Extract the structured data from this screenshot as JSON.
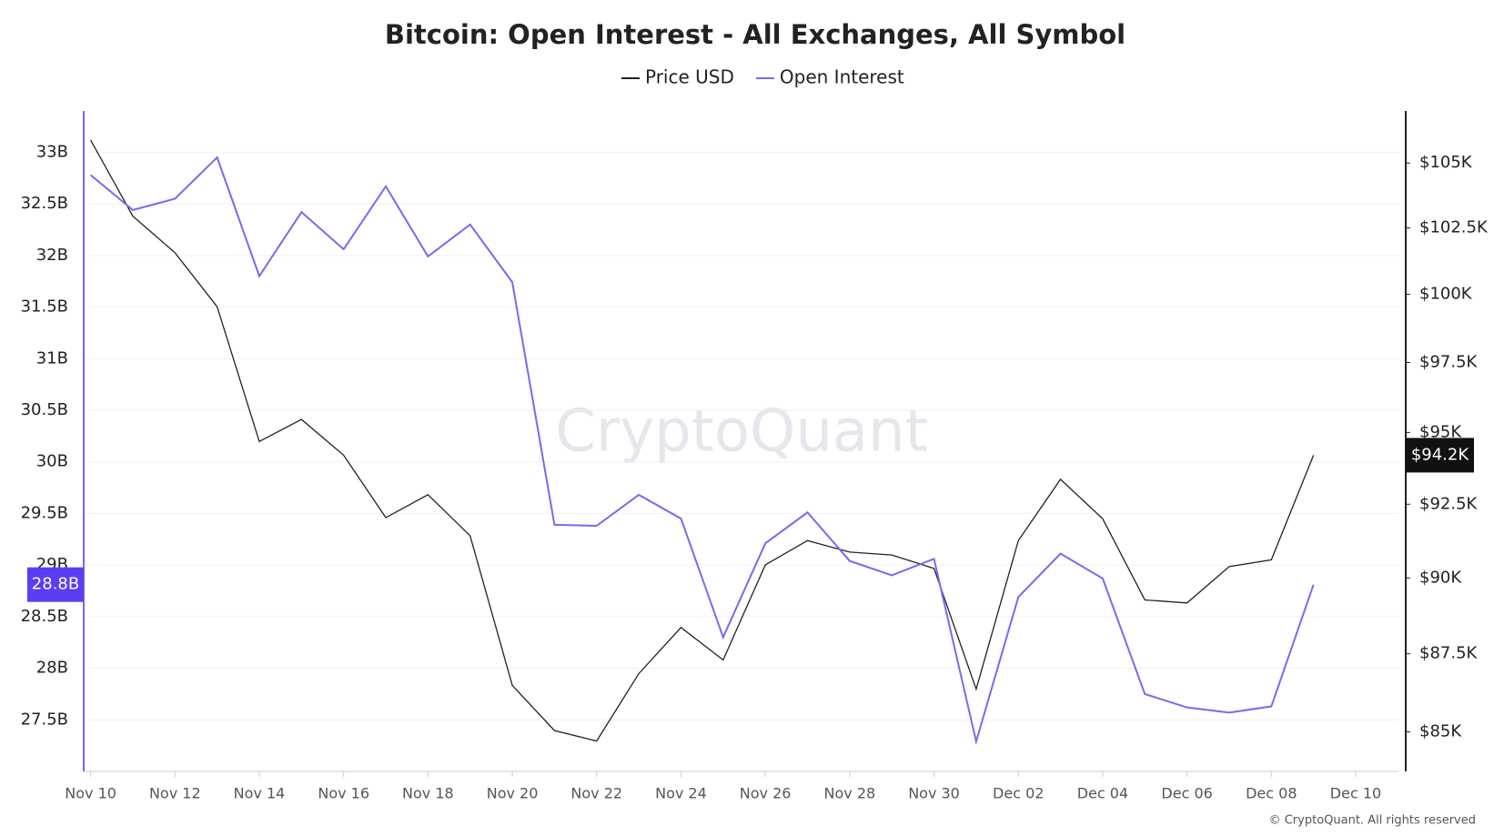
{
  "chart_data": {
    "type": "line",
    "title": "Bitcoin: Open Interest - All Exchanges, All Symbol",
    "categories": [
      "Nov 10",
      null,
      "Nov 12",
      null,
      "Nov 14",
      null,
      "Nov 16",
      null,
      "Nov 18",
      null,
      "Nov 20",
      null,
      "Nov 22",
      null,
      "Nov 24",
      null,
      "Nov 26",
      null,
      "Nov 28",
      null,
      "Nov 30",
      null,
      "Dec 02",
      null,
      "Dec 04",
      null,
      "Dec 06",
      null,
      "Dec 08",
      null,
      "Dec 10"
    ],
    "series": [
      {
        "name": "Price USD",
        "color": "#222222",
        "axis": "y2",
        "values": [
          105900,
          102950,
          101560,
          99540,
          94680,
          95460,
          94200,
          92040,
          92830,
          91420,
          86480,
          85040,
          84710,
          86860,
          88360,
          87300,
          90440,
          91260,
          90870,
          90770,
          90320,
          86360,
          91260,
          93360,
          92000,
          89270,
          89170,
          90380,
          90610,
          94200,
          null
        ],
        "value_labels": [
          null,
          null,
          null,
          null,
          null,
          null,
          null,
          null,
          null,
          null,
          null,
          null,
          null,
          null,
          null,
          null,
          null,
          null,
          null,
          null,
          null,
          null,
          null,
          null,
          null,
          null,
          null,
          null,
          null,
          "$94.2K",
          null
        ]
      },
      {
        "name": "Open Interest",
        "color": "#7b68ee",
        "values": [
          32.78,
          32.44,
          32.55,
          32.95,
          31.8,
          32.42,
          32.06,
          32.67,
          31.99,
          32.3,
          31.74,
          29.39,
          29.38,
          29.68,
          29.45,
          28.3,
          29.21,
          29.51,
          29.04,
          28.9,
          29.06,
          27.29,
          28.69,
          29.11,
          28.87,
          27.75,
          27.62,
          27.57,
          27.63,
          28.81,
          null
        ],
        "value_labels": [
          null,
          null,
          null,
          null,
          null,
          null,
          null,
          null,
          null,
          null,
          null,
          null,
          null,
          null,
          null,
          null,
          null,
          null,
          null,
          null,
          null,
          null,
          null,
          null,
          null,
          null,
          null,
          null,
          null,
          "28.8B",
          null
        ]
      }
    ],
    "ylim": [
      27,
      33.4
    ],
    "yticks": [
      {
        "value": 27.5,
        "label": "27.5B"
      },
      {
        "value": 28,
        "label": "28B"
      },
      {
        "value": 28.5,
        "label": "28.5B"
      },
      {
        "value": 29,
        "label": "29B"
      },
      {
        "value": 29.5,
        "label": "29.5B"
      },
      {
        "value": 30,
        "label": "30B"
      },
      {
        "value": 30.5,
        "label": "30.5B"
      },
      {
        "value": 31,
        "label": "31B"
      },
      {
        "value": 31.5,
        "label": "31.5B"
      },
      {
        "value": 32,
        "label": "32B"
      },
      {
        "value": 32.5,
        "label": "32.5B"
      },
      {
        "value": 33,
        "label": "33B"
      }
    ],
    "y2lim": [
      83760,
      107050
    ],
    "y2ticks": [
      {
        "value": 85000,
        "label": "$85K"
      },
      {
        "value": 87500,
        "label": "$87.5K"
      },
      {
        "value": 90000,
        "label": "$90K"
      },
      {
        "value": 92500,
        "label": "$92.5K"
      },
      {
        "value": 95000,
        "label": "$95K"
      },
      {
        "value": 97500,
        "label": "$97.5K"
      },
      {
        "value": 100000,
        "label": "$100K"
      },
      {
        "value": 102500,
        "label": "$102.5K"
      },
      {
        "value": 105000,
        "label": "$105K"
      }
    ],
    "y2_log": true,
    "grid": true,
    "legend": "top",
    "watermark": "CryptoQuant",
    "credit": "© CryptoQuant. All rights reserved"
  }
}
